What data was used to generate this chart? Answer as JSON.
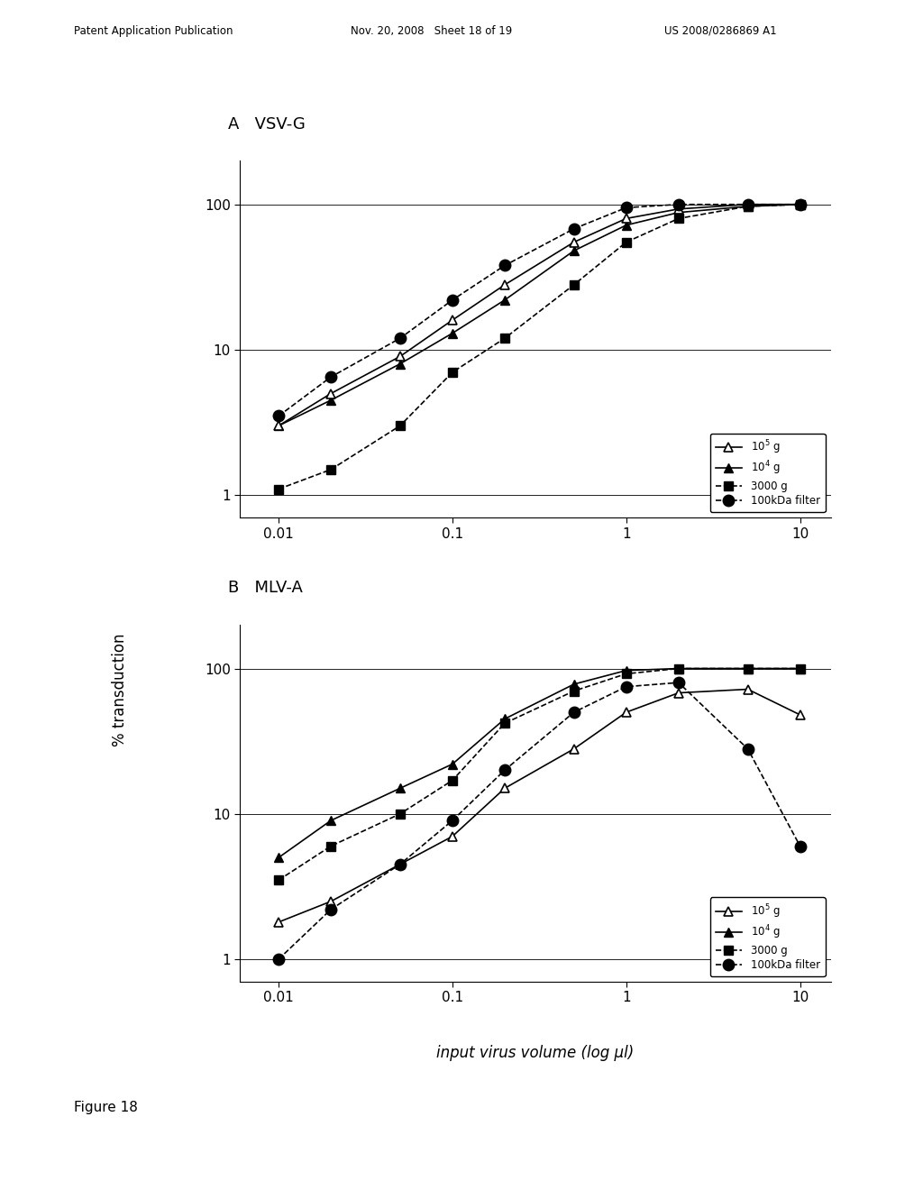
{
  "panel_A_title": "A   VSV-G",
  "panel_B_title": "B   MLV-A",
  "xlabel": "input virus volume (log μl)",
  "ylabel": "% transduction",
  "figure_caption": "Figure 18",
  "header_left": "Patent Application Publication",
  "header_mid": "Nov. 20, 2008   Sheet 18 of 19",
  "header_right": "US 2008/0286869 A1",
  "A_x": [
    0.01,
    0.02,
    0.05,
    0.1,
    0.2,
    0.5,
    1.0,
    2.0,
    5.0,
    10.0
  ],
  "A_10e5g": [
    3.0,
    5.0,
    9.0,
    16.0,
    28.0,
    55.0,
    80.0,
    93.0,
    100.0,
    100.0
  ],
  "A_10e4g": [
    3.0,
    4.5,
    8.0,
    13.0,
    22.0,
    48.0,
    72.0,
    88.0,
    97.0,
    100.0
  ],
  "A_3000g": [
    1.1,
    1.5,
    3.0,
    7.0,
    12.0,
    28.0,
    55.0,
    80.0,
    97.0,
    100.0
  ],
  "A_100kDa": [
    3.5,
    6.5,
    12.0,
    22.0,
    38.0,
    68.0,
    95.0,
    100.0,
    100.0,
    100.0
  ],
  "B_x": [
    0.01,
    0.02,
    0.05,
    0.1,
    0.2,
    0.5,
    1.0,
    2.0,
    5.0,
    10.0
  ],
  "B_10e5g": [
    1.8,
    2.5,
    4.5,
    7.0,
    15.0,
    28.0,
    50.0,
    68.0,
    72.0,
    48.0
  ],
  "B_10e4g": [
    5.0,
    9.0,
    15.0,
    22.0,
    45.0,
    78.0,
    97.0,
    100.0,
    100.0,
    100.0
  ],
  "B_3000g": [
    3.5,
    6.0,
    10.0,
    17.0,
    42.0,
    70.0,
    92.0,
    100.0,
    100.0,
    100.0
  ],
  "B_100kDa": [
    1.0,
    2.2,
    4.5,
    9.0,
    20.0,
    50.0,
    75.0,
    80.0,
    28.0,
    6.0
  ]
}
